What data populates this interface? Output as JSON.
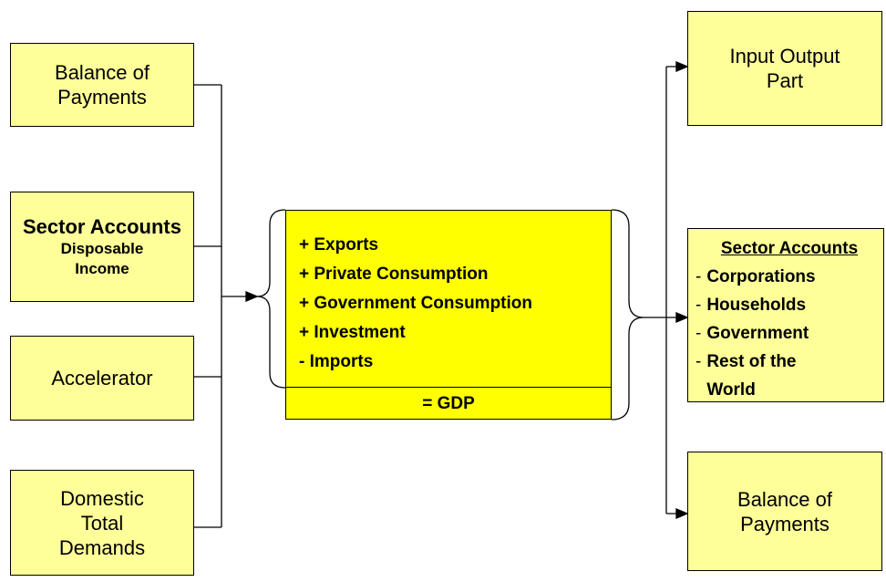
{
  "left_boxes": [
    {
      "lines": [
        "Balance of",
        "Payments"
      ]
    },
    {
      "title": "Sector Accounts",
      "lines": [
        "Disposable",
        "Income"
      ]
    },
    {
      "lines": [
        "Accelerator"
      ]
    },
    {
      "lines": [
        "Domestic",
        "Total",
        "Demands"
      ]
    }
  ],
  "center": {
    "items": [
      "+ Exports",
      "+ Private Consumption",
      "+ Government Consumption",
      "+ Investment",
      "- Imports"
    ],
    "total": "= GDP"
  },
  "right_boxes": {
    "top": {
      "lines": [
        "Input Output",
        "Part"
      ]
    },
    "middle": {
      "title": "Sector Accounts",
      "bullet": "-",
      "items": [
        "Corporations",
        "Households",
        "Government",
        "Rest of the World"
      ]
    },
    "bottom": {
      "lines": [
        "Balance of",
        "Payments"
      ]
    }
  }
}
